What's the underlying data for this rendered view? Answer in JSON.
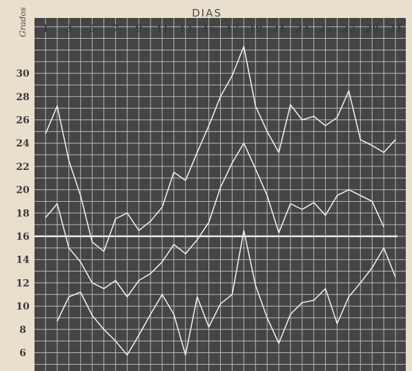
{
  "chart_data": {
    "type": "line",
    "xlabel": "DIAS",
    "ylabel": "Grados",
    "x_ticks": [
      "1",
      "3",
      "5",
      "7",
      "9",
      "11",
      "13",
      "15",
      "17",
      "19",
      "21",
      "23",
      "25",
      "27",
      "29",
      "31"
    ],
    "y_ticks": [
      "6",
      "8",
      "10",
      "12",
      "14",
      "16",
      "18",
      "20",
      "22",
      "24",
      "26",
      "28",
      "30"
    ],
    "xlim": [
      1,
      31
    ],
    "ylim": [
      5.5,
      32.5
    ],
    "reference_line": 16,
    "grid": true,
    "background": "#454545",
    "line_color": "#f3efe6",
    "series": [
      {
        "x": [
          1,
          2,
          3,
          4,
          5,
          6,
          7,
          8,
          9,
          10,
          11,
          12,
          13,
          14,
          15,
          16,
          17,
          18,
          19,
          20,
          21,
          22,
          23,
          24,
          25,
          26,
          27,
          28,
          29,
          30,
          31
        ],
        "values": [
          24.8,
          27.2,
          22.5,
          19.5,
          15.5,
          14.7,
          17.5,
          18.0,
          16.5,
          17.3,
          18.5,
          21.5,
          20.8,
          23.2,
          25.5,
          28.0,
          29.8,
          32.3,
          27.2,
          25.0,
          23.2,
          27.3,
          26.0,
          26.3,
          25.5,
          26.2,
          28.5,
          24.3,
          23.8,
          23.2,
          24.3
        ]
      },
      {
        "x": [
          1,
          2,
          3,
          4,
          5,
          6,
          7,
          8,
          9,
          10,
          11,
          12,
          13,
          14,
          15,
          16,
          17,
          18,
          19,
          20,
          21,
          22,
          23,
          24,
          25,
          26,
          27,
          28,
          29,
          30
        ],
        "values": [
          17.6,
          18.8,
          15.0,
          13.8,
          12.0,
          11.5,
          12.2,
          10.8,
          12.2,
          12.8,
          13.8,
          15.3,
          14.5,
          15.7,
          17.2,
          20.2,
          22.3,
          24.0,
          21.8,
          19.5,
          16.3,
          18.8,
          18.3,
          18.9,
          17.8,
          19.5,
          20.0,
          19.5,
          19.0,
          16.8
        ]
      },
      {
        "x": [
          2,
          3,
          4,
          5,
          6,
          7,
          8,
          9,
          10,
          11,
          12,
          13,
          14,
          15,
          16,
          17,
          18,
          19,
          20,
          21,
          22,
          23,
          24,
          25,
          26,
          27,
          28,
          29,
          30,
          31
        ],
        "values": [
          8.7,
          10.8,
          11.2,
          9.2,
          8.0,
          7.0,
          5.8,
          7.5,
          9.3,
          11.0,
          9.3,
          5.8,
          10.8,
          8.2,
          10.2,
          11.0,
          16.5,
          11.8,
          9.0,
          6.8,
          9.3,
          10.3,
          10.5,
          11.5,
          8.5,
          10.8,
          12.0,
          13.3,
          15.0,
          12.5
        ]
      }
    ]
  }
}
